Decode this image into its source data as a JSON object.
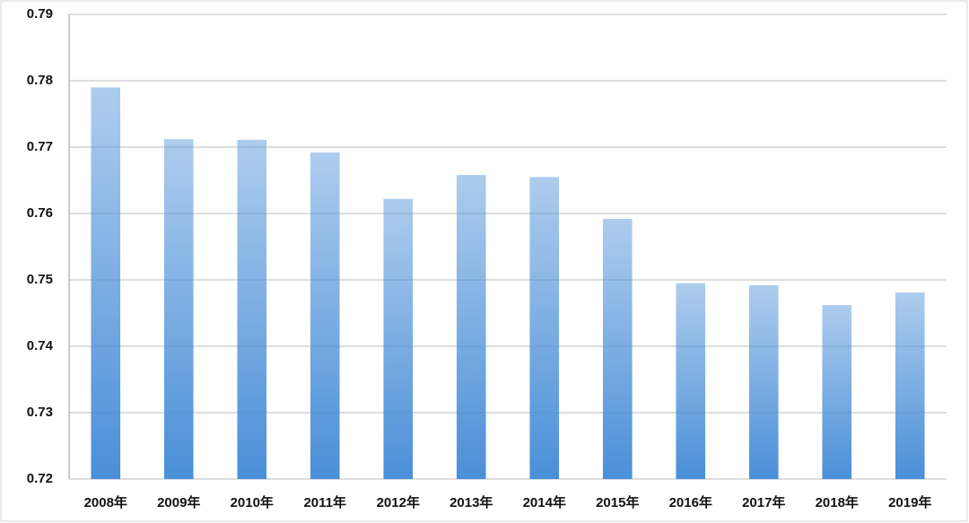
{
  "chart_data": {
    "type": "bar",
    "categories": [
      "2008年",
      "2009年",
      "2010年",
      "2011年",
      "2012年",
      "2013年",
      "2014年",
      "2015年",
      "2016年",
      "2017年",
      "2018年",
      "2019年"
    ],
    "values": [
      0.779,
      0.7712,
      0.7711,
      0.7692,
      0.7622,
      0.7658,
      0.7655,
      0.7592,
      0.7495,
      0.7492,
      0.7462,
      0.7481
    ],
    "color": "#4a8fd8",
    "ylim": [
      0.72,
      0.79
    ],
    "yticks": [
      0.72,
      0.73,
      0.74,
      0.75,
      0.76,
      0.77,
      0.78,
      0.79
    ],
    "grid": true
  }
}
